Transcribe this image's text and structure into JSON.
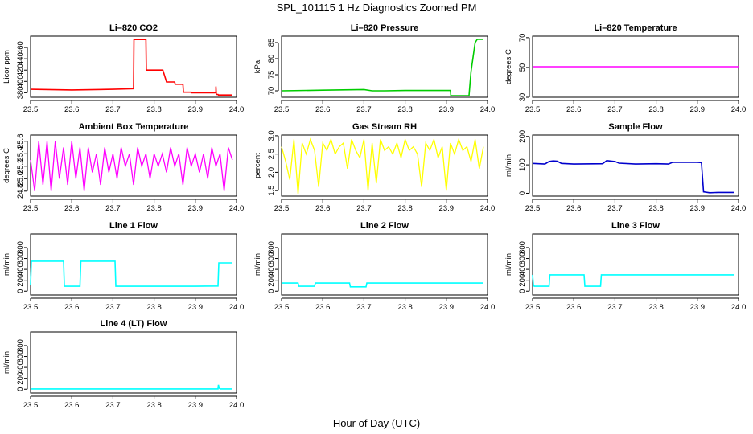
{
  "figure": {
    "title": "SPL_101115  1 Hz Diagnostics Zoomed PM",
    "xlabel": "Hour of Day (UTC)"
  },
  "chart_data": [
    {
      "type": "line",
      "title": "Li–820 CO2",
      "ylabel": "Licor ppm",
      "color": "#ff0000",
      "xlim": [
        23.5,
        24.0
      ],
      "xticks": [
        23.5,
        23.6,
        23.7,
        23.8,
        23.9,
        24.0
      ],
      "xtick_labels": [
        "23.5",
        "23.6",
        "23.7",
        "23.8",
        "23.9",
        "24.0"
      ],
      "ylim": [
        372,
        480
      ],
      "yticks": [
        380,
        400,
        420,
        440,
        460
      ],
      "ytick_labels": [
        "380",
        "400",
        "420",
        "440",
        "460"
      ],
      "x": [
        23.5,
        23.6,
        23.7,
        23.75,
        23.751,
        23.78,
        23.781,
        23.82,
        23.821,
        23.83,
        23.831,
        23.85,
        23.851,
        23.87,
        23.871,
        23.89,
        23.891,
        23.95,
        23.95,
        23.951,
        23.955,
        23.956,
        23.99
      ],
      "y": [
        386,
        385,
        386,
        387,
        474,
        474,
        420,
        420,
        420,
        399,
        399,
        399,
        395,
        395,
        381,
        381,
        380,
        380,
        391,
        377,
        377,
        376,
        376
      ]
    },
    {
      "type": "line",
      "title": "Li–820 Pressure",
      "ylabel": "kPa",
      "color": "#00cc00",
      "xlim": [
        23.5,
        24.0
      ],
      "xticks": [
        23.5,
        23.6,
        23.7,
        23.8,
        23.9,
        24.0
      ],
      "xtick_labels": [
        "23.5",
        "23.6",
        "23.7",
        "23.8",
        "23.9",
        "24.0"
      ],
      "ylim": [
        68,
        87
      ],
      "yticks": [
        70,
        75,
        80,
        85
      ],
      "ytick_labels": [
        "70",
        "75",
        "80",
        "85"
      ],
      "x": [
        23.5,
        23.6,
        23.7,
        23.72,
        23.75,
        23.8,
        23.9,
        23.91,
        23.911,
        23.955,
        23.96,
        23.97,
        23.975,
        23.99
      ],
      "y": [
        70,
        70.2,
        70.4,
        70,
        70,
        70.1,
        70.1,
        70.1,
        68.5,
        68.5,
        76,
        85,
        86,
        86
      ]
    },
    {
      "type": "line",
      "title": "Li–820 Temperature",
      "ylabel": "degrees C",
      "color": "#ff00ff",
      "xlim": [
        23.5,
        24.0
      ],
      "xticks": [
        23.5,
        23.6,
        23.7,
        23.8,
        23.9,
        24.0
      ],
      "xtick_labels": [
        "23.5",
        "23.6",
        "23.7",
        "23.8",
        "23.9",
        "24.0"
      ],
      "ylim": [
        30,
        71
      ],
      "yticks": [
        30,
        50,
        70
      ],
      "ytick_labels": [
        "30",
        "50",
        "70"
      ],
      "x": [
        23.5,
        24.0
      ],
      "y": [
        50.5,
        50.5
      ]
    },
    {
      "type": "line",
      "title": "Ambient Box Temperature",
      "ylabel": "degrees C",
      "color": "#ff00ff",
      "xlim": [
        23.5,
        24.0
      ],
      "xticks": [
        23.5,
        23.6,
        23.7,
        23.8,
        23.9,
        24.0
      ],
      "xtick_labels": [
        "23.5",
        "23.6",
        "23.7",
        "23.8",
        "23.9",
        "24.0"
      ],
      "ylim": [
        24.72,
        25.7
      ],
      "yticks": [
        24.8,
        25.0,
        25.2,
        25.4,
        25.6
      ],
      "ytick_labels": [
        "24.8",
        "25.0",
        "25.2",
        "25.4",
        "25.6"
      ],
      "x": [
        23.5,
        23.51,
        23.52,
        23.53,
        23.54,
        23.55,
        23.56,
        23.57,
        23.58,
        23.59,
        23.6,
        23.61,
        23.62,
        23.63,
        23.64,
        23.65,
        23.66,
        23.67,
        23.68,
        23.69,
        23.7,
        23.71,
        23.72,
        23.73,
        23.74,
        23.75,
        23.76,
        23.77,
        23.78,
        23.79,
        23.8,
        23.81,
        23.82,
        23.83,
        23.84,
        23.85,
        23.86,
        23.87,
        23.88,
        23.89,
        23.9,
        23.91,
        23.92,
        23.93,
        23.94,
        23.95,
        23.96,
        23.97,
        23.98,
        23.99
      ],
      "y": [
        25.3,
        24.8,
        25.6,
        24.9,
        25.6,
        24.8,
        25.6,
        25.0,
        25.5,
        24.9,
        25.6,
        25.0,
        25.5,
        24.8,
        25.5,
        25.1,
        25.4,
        24.9,
        25.5,
        25.1,
        25.4,
        25.0,
        25.5,
        25.2,
        25.4,
        24.9,
        25.5,
        25.2,
        25.4,
        25.0,
        25.4,
        25.2,
        25.4,
        25.1,
        25.5,
        25.2,
        25.4,
        24.9,
        25.5,
        25.2,
        25.4,
        25.1,
        25.4,
        25.0,
        25.5,
        25.2,
        25.4,
        24.8,
        25.5,
        25.3
      ]
    },
    {
      "type": "line",
      "title": "Gas Stream RH",
      "ylabel": "percent",
      "color": "#ffff00",
      "xlim": [
        23.5,
        24.0
      ],
      "xticks": [
        23.5,
        23.6,
        23.7,
        23.8,
        23.9,
        24.0
      ],
      "xtick_labels": [
        "23.5",
        "23.6",
        "23.7",
        "23.8",
        "23.9",
        "24.0"
      ],
      "ylim": [
        1.35,
        3.02
      ],
      "yticks": [
        1.5,
        2.0,
        2.5,
        3.0
      ],
      "ytick_labels": [
        "1.5",
        "2.0",
        "2.5",
        "3.0"
      ],
      "x": [
        23.5,
        23.51,
        23.52,
        23.53,
        23.54,
        23.55,
        23.56,
        23.57,
        23.58,
        23.59,
        23.6,
        23.61,
        23.62,
        23.63,
        23.64,
        23.65,
        23.66,
        23.67,
        23.68,
        23.69,
        23.7,
        23.71,
        23.72,
        23.73,
        23.74,
        23.75,
        23.76,
        23.77,
        23.78,
        23.79,
        23.8,
        23.81,
        23.82,
        23.83,
        23.84,
        23.85,
        23.86,
        23.87,
        23.88,
        23.89,
        23.9,
        23.91,
        23.92,
        23.93,
        23.94,
        23.95,
        23.96,
        23.97,
        23.98,
        23.99
      ],
      "y": [
        2.7,
        2.3,
        1.8,
        2.9,
        1.4,
        2.8,
        2.5,
        2.9,
        2.6,
        1.6,
        2.8,
        2.6,
        2.9,
        2.5,
        2.7,
        2.8,
        2.1,
        2.9,
        2.6,
        2.4,
        2.9,
        1.5,
        2.8,
        1.7,
        2.9,
        2.6,
        2.7,
        2.5,
        2.8,
        2.4,
        2.9,
        2.6,
        2.7,
        2.5,
        1.6,
        2.8,
        2.6,
        2.9,
        2.4,
        2.7,
        1.5,
        2.8,
        2.5,
        2.9,
        2.6,
        2.7,
        2.3,
        2.9,
        2.1,
        2.7
      ]
    },
    {
      "type": "line",
      "title": "Sample Flow",
      "ylabel": "ml/min",
      "color": "#0000cc",
      "xlim": [
        23.5,
        24.0
      ],
      "xticks": [
        23.5,
        23.6,
        23.7,
        23.8,
        23.9,
        24.0
      ],
      "xtick_labels": [
        "23.5",
        "23.6",
        "23.7",
        "23.8",
        "23.9",
        "24.0"
      ],
      "ylim": [
        -10,
        205
      ],
      "yticks": [
        0,
        100,
        200
      ],
      "ytick_labels": [
        "0",
        "100",
        "200"
      ],
      "x": [
        23.5,
        23.53,
        23.54,
        23.55,
        23.56,
        23.57,
        23.6,
        23.67,
        23.68,
        23.7,
        23.71,
        23.75,
        23.8,
        23.83,
        23.84,
        23.9,
        23.91,
        23.915,
        23.93,
        23.95,
        23.99
      ],
      "y": [
        105,
        103,
        112,
        114,
        113,
        105,
        103,
        104,
        115,
        112,
        106,
        103,
        104,
        103,
        109,
        109,
        108,
        5,
        2,
        3,
        3
      ]
    },
    {
      "type": "line",
      "title": "Line 1 Flow",
      "ylabel": "ml/min",
      "color": "#00ffff",
      "xlim": [
        23.5,
        24.0
      ],
      "xticks": [
        23.5,
        23.6,
        23.7,
        23.8,
        23.9,
        24.0
      ],
      "xtick_labels": [
        "23.5",
        "23.6",
        "23.7",
        "23.8",
        "23.9",
        "24.0"
      ],
      "ylim": [
        -70,
        1050
      ],
      "yticks": [
        0,
        200,
        400,
        600,
        800
      ],
      "ytick_labels": [
        "0",
        "200",
        "400",
        "600",
        "800"
      ],
      "x": [
        23.5,
        23.502,
        23.58,
        23.582,
        23.62,
        23.622,
        23.705,
        23.707,
        23.9,
        23.955,
        23.957,
        23.99
      ],
      "y": [
        120,
        550,
        550,
        90,
        90,
        550,
        550,
        90,
        90,
        95,
        520,
        520
      ]
    },
    {
      "type": "line",
      "title": "Line 2 Flow",
      "ylabel": "ml/min",
      "color": "#00ffff",
      "xlim": [
        23.5,
        24.0
      ],
      "xticks": [
        23.5,
        23.6,
        23.7,
        23.8,
        23.9,
        24.0
      ],
      "xtick_labels": [
        "23.5",
        "23.6",
        "23.7",
        "23.8",
        "23.9",
        "24.0"
      ],
      "ylim": [
        -70,
        1050
      ],
      "yticks": [
        0,
        200,
        400,
        600,
        800
      ],
      "ytick_labels": [
        "0",
        "200",
        "400",
        "600",
        "800"
      ],
      "x": [
        23.5,
        23.54,
        23.542,
        23.58,
        23.582,
        23.665,
        23.667,
        23.705,
        23.707,
        23.99
      ],
      "y": [
        150,
        150,
        90,
        90,
        150,
        150,
        80,
        80,
        150,
        150
      ]
    },
    {
      "type": "line",
      "title": "Line 3 Flow",
      "ylabel": "ml/min",
      "color": "#00ffff",
      "xlim": [
        23.5,
        24.0
      ],
      "xticks": [
        23.5,
        23.6,
        23.7,
        23.8,
        23.9,
        24.0
      ],
      "xtick_labels": [
        "23.5",
        "23.6",
        "23.7",
        "23.8",
        "23.9",
        "24.0"
      ],
      "ylim": [
        -70,
        1050
      ],
      "yticks": [
        0,
        200,
        400,
        600,
        800
      ],
      "ytick_labels": [
        "0",
        "200",
        "400",
        "600",
        "800"
      ],
      "x": [
        23.5,
        23.502,
        23.504,
        23.54,
        23.542,
        23.625,
        23.627,
        23.665,
        23.667,
        23.99
      ],
      "y": [
        300,
        120,
        90,
        90,
        300,
        300,
        90,
        90,
        300,
        300
      ]
    },
    {
      "type": "line",
      "title": "Line 4 (LT) Flow",
      "ylabel": "ml/min",
      "color": "#00ffff",
      "xlim": [
        23.5,
        24.0
      ],
      "xticks": [
        23.5,
        23.6,
        23.7,
        23.8,
        23.9,
        24.0
      ],
      "xtick_labels": [
        "23.5",
        "23.6",
        "23.7",
        "23.8",
        "23.9",
        "24.0"
      ],
      "ylim": [
        -70,
        1050
      ],
      "yticks": [
        0,
        200,
        400,
        600,
        800
      ],
      "ytick_labels": [
        "0",
        "200",
        "400",
        "600",
        "800"
      ],
      "x": [
        23.5,
        23.9,
        23.955,
        23.956,
        23.958,
        23.96,
        23.99
      ],
      "y": [
        5,
        5,
        5,
        80,
        20,
        5,
        5
      ]
    }
  ]
}
